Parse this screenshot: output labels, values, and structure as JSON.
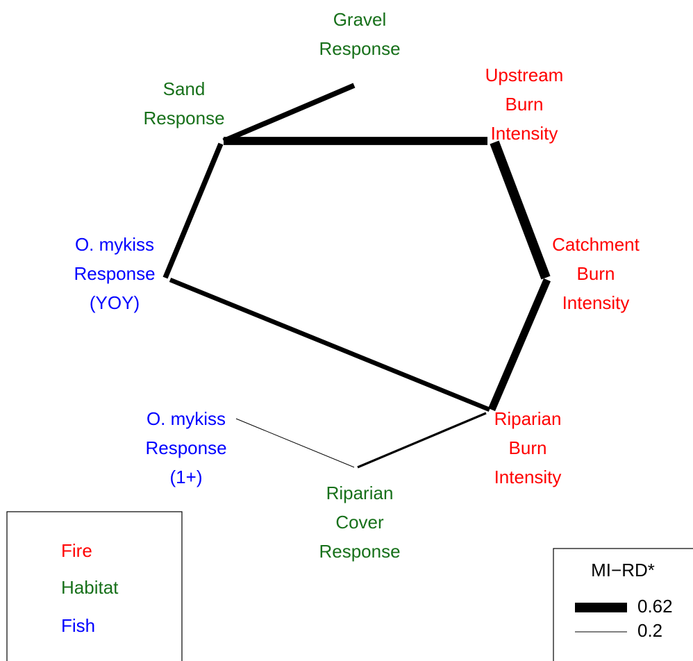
{
  "groups": [
    {
      "name": "Fire",
      "color": "#ff0000"
    },
    {
      "name": "Habitat",
      "color": "#17701a"
    },
    {
      "name": "Fish",
      "color": "#0000ff"
    }
  ],
  "nodes": [
    {
      "lines": [
        "Gravel",
        "Response"
      ],
      "group": 1
    },
    {
      "lines": [
        "Upstream",
        "Burn",
        "Intensity"
      ],
      "group": 0
    },
    {
      "lines": [
        "Sand",
        "Response"
      ],
      "group": 1
    },
    {
      "lines": [
        "O. mykiss",
        "Response",
        "(YOY)"
      ],
      "group": 2
    },
    {
      "lines": [
        "Catchment",
        "Burn",
        "Intensity"
      ],
      "group": 0
    },
    {
      "lines": [
        "O. mykiss",
        "Response",
        "(1+)"
      ],
      "group": 2
    },
    {
      "lines": [
        "Riparian",
        "Burn",
        "Intensity"
      ],
      "group": 0
    },
    {
      "lines": [
        "Riparian",
        "Cover",
        "Response"
      ],
      "group": 1
    }
  ],
  "edges": [
    {
      "weight": 0.41
    },
    {
      "weight": 0.55
    },
    {
      "weight": 0.62
    },
    {
      "weight": 0.52
    },
    {
      "weight": 0.41
    },
    {
      "weight": 0.38
    },
    {
      "weight": 0.27
    },
    {
      "weight": 0.2
    }
  ],
  "weight_legend": {
    "title": "MI−RD*",
    "values": [
      0.62,
      0.2
    ]
  }
}
